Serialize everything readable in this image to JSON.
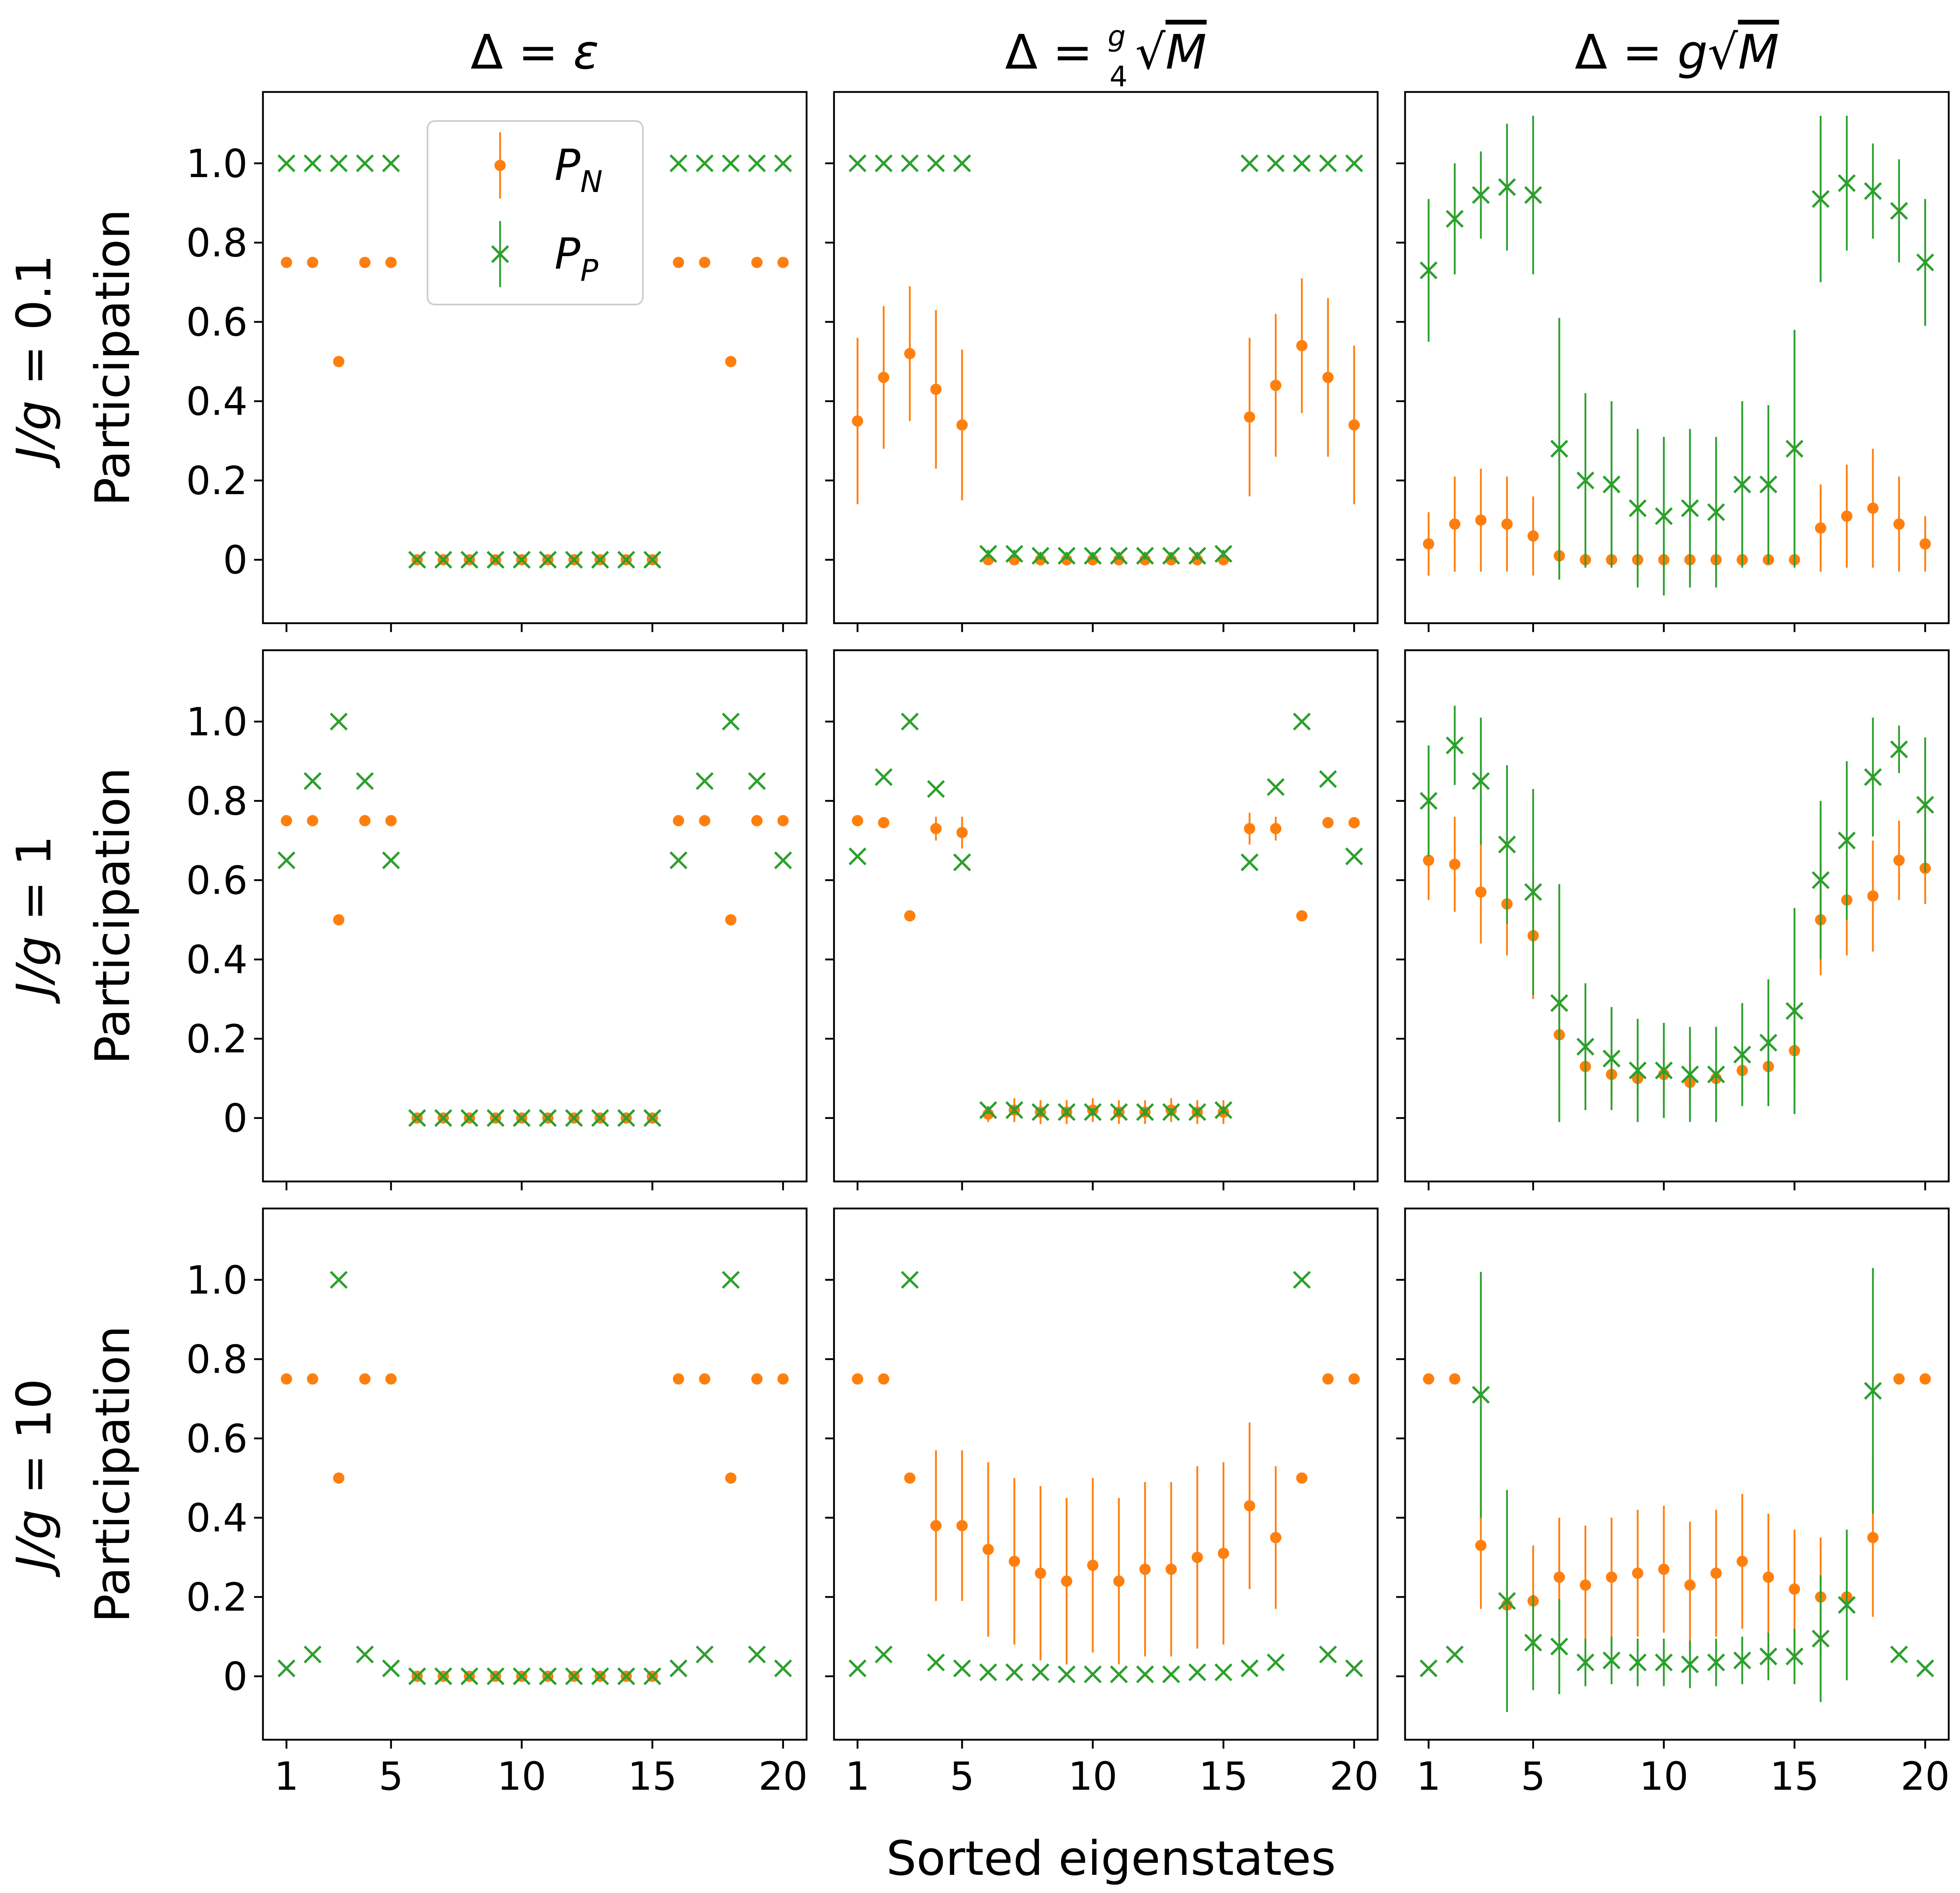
{
  "figure": {
    "xlabel": "Sorted eigenstates",
    "ylabel": "Participation",
    "col_titles": [
      {
        "prefix": "Δ = ",
        "main": "ε"
      },
      {
        "prefix": "Δ = ",
        "frac_num": "g",
        "frac_den": "4",
        "sqrt": "M"
      },
      {
        "prefix": "Δ = ",
        "main": "g",
        "sqrt": "M"
      }
    ],
    "row_labels": [
      {
        "var": "J/g",
        "eq": " = ",
        "value": "0.1"
      },
      {
        "var": "J/g",
        "eq": " = ",
        "value": "1"
      },
      {
        "var": "J/g",
        "eq": " = ",
        "value": "10"
      }
    ],
    "legend": {
      "position": "top-left of first panel",
      "entries": [
        {
          "symbol": "P",
          "sub": "N",
          "color": "#ff7f0e",
          "marker": "dot"
        },
        {
          "symbol": "P",
          "sub": "P",
          "color": "#2ca02c",
          "marker": "x"
        }
      ]
    },
    "colors": {
      "PN": "#ff7f0e",
      "PP": "#2ca02c"
    }
  },
  "chart_data": {
    "type": "scatter",
    "xlabel": "Sorted eigenstates",
    "ylabel": "Participation",
    "x": [
      1,
      2,
      3,
      4,
      5,
      6,
      7,
      8,
      9,
      10,
      11,
      12,
      13,
      14,
      15,
      16,
      17,
      18,
      19,
      20
    ],
    "xticks": [
      1,
      5,
      10,
      15,
      20
    ],
    "xtick_labels": [
      "1",
      "5",
      "10",
      "15",
      "20"
    ],
    "yticks": [
      0,
      0.2,
      0.4,
      0.6,
      0.8,
      1.0
    ],
    "ytick_labels": [
      "0",
      "0.2",
      "0.4",
      "0.6",
      "0.8",
      "1.0"
    ],
    "xlim": [
      0.1,
      20.9
    ],
    "ylim": [
      -0.16,
      1.18
    ],
    "grid": false,
    "panels": [
      {
        "row": 0,
        "col": 0,
        "PN": [
          0.75,
          0.75,
          0.5,
          0.75,
          0.75,
          0,
          0,
          0,
          0,
          0,
          0,
          0,
          0,
          0,
          0,
          0.75,
          0.75,
          0.5,
          0.75,
          0.75
        ],
        "PN_err": [
          0,
          0,
          0,
          0,
          0,
          0,
          0,
          0,
          0,
          0,
          0,
          0,
          0,
          0,
          0,
          0,
          0,
          0,
          0,
          0
        ],
        "PP": [
          1,
          1,
          1,
          1,
          1,
          0,
          0,
          0,
          0,
          0,
          0,
          0,
          0,
          0,
          0,
          1,
          1,
          1,
          1,
          1
        ],
        "PP_err": [
          0,
          0,
          0,
          0,
          0,
          0,
          0,
          0,
          0,
          0,
          0,
          0,
          0,
          0,
          0,
          0,
          0,
          0,
          0,
          0
        ]
      },
      {
        "row": 0,
        "col": 1,
        "PN": [
          0.35,
          0.46,
          0.52,
          0.43,
          0.34,
          0,
          0,
          0,
          0,
          0,
          0,
          0,
          0,
          0,
          0,
          0.36,
          0.44,
          0.54,
          0.46,
          0.34
        ],
        "PN_err": [
          0.21,
          0.18,
          0.17,
          0.2,
          0.19,
          0,
          0,
          0,
          0,
          0,
          0,
          0,
          0,
          0,
          0,
          0.2,
          0.18,
          0.17,
          0.2,
          0.2
        ],
        "PP": [
          1,
          1,
          1,
          1,
          1,
          0.015,
          0.015,
          0.01,
          0.01,
          0.01,
          0.01,
          0.01,
          0.01,
          0.01,
          0.015,
          1,
          1,
          1,
          1,
          1
        ],
        "PP_err": [
          0,
          0,
          0,
          0,
          0,
          0.01,
          0.01,
          0.01,
          0.01,
          0.01,
          0.01,
          0.01,
          0.01,
          0.01,
          0.01,
          0,
          0,
          0,
          0,
          0
        ]
      },
      {
        "row": 0,
        "col": 2,
        "PN": [
          0.04,
          0.09,
          0.1,
          0.09,
          0.06,
          0.01,
          0,
          0,
          0,
          0,
          0,
          0,
          0,
          0,
          0,
          0.08,
          0.11,
          0.13,
          0.09,
          0.04
        ],
        "PN_err": [
          0.08,
          0.12,
          0.13,
          0.12,
          0.1,
          0.03,
          0.01,
          0.01,
          0.01,
          0.01,
          0.01,
          0.01,
          0.01,
          0.01,
          0.01,
          0.11,
          0.13,
          0.15,
          0.12,
          0.07
        ],
        "PP": [
          0.73,
          0.86,
          0.92,
          0.94,
          0.92,
          0.28,
          0.2,
          0.19,
          0.13,
          0.11,
          0.13,
          0.12,
          0.19,
          0.19,
          0.28,
          0.91,
          0.95,
          0.93,
          0.88,
          0.75
        ],
        "PP_err": [
          0.18,
          0.14,
          0.11,
          0.16,
          0.2,
          0.33,
          0.22,
          0.21,
          0.2,
          0.2,
          0.2,
          0.19,
          0.21,
          0.2,
          0.3,
          0.21,
          0.17,
          0.12,
          0.13,
          0.16
        ]
      },
      {
        "row": 1,
        "col": 0,
        "PN": [
          0.75,
          0.75,
          0.5,
          0.75,
          0.75,
          0,
          0,
          0,
          0,
          0,
          0,
          0,
          0,
          0,
          0,
          0.75,
          0.75,
          0.5,
          0.75,
          0.75
        ],
        "PN_err": [
          0,
          0,
          0,
          0,
          0,
          0,
          0,
          0,
          0,
          0,
          0,
          0,
          0,
          0,
          0,
          0,
          0,
          0,
          0,
          0
        ],
        "PP": [
          0.65,
          0.85,
          1,
          0.85,
          0.65,
          0,
          0,
          0,
          0,
          0,
          0,
          0,
          0,
          0,
          0,
          0.65,
          0.85,
          1,
          0.85,
          0.65
        ],
        "PP_err": [
          0,
          0,
          0,
          0,
          0,
          0,
          0,
          0,
          0,
          0,
          0,
          0,
          0,
          0,
          0,
          0,
          0,
          0,
          0,
          0
        ]
      },
      {
        "row": 1,
        "col": 1,
        "PN": [
          0.75,
          0.745,
          0.51,
          0.73,
          0.72,
          0.01,
          0.02,
          0.015,
          0.015,
          0.02,
          0.015,
          0.015,
          0.02,
          0.015,
          0.015,
          0.73,
          0.73,
          0.51,
          0.745,
          0.745
        ],
        "PN_err": [
          0,
          0,
          0,
          0.03,
          0.04,
          0.02,
          0.03,
          0.03,
          0.03,
          0.03,
          0.03,
          0.03,
          0.03,
          0.03,
          0.03,
          0.04,
          0.03,
          0,
          0,
          0
        ],
        "PP": [
          0.66,
          0.86,
          1,
          0.83,
          0.645,
          0.02,
          0.02,
          0.015,
          0.015,
          0.015,
          0.015,
          0.015,
          0.015,
          0.015,
          0.02,
          0.645,
          0.835,
          1,
          0.855,
          0.66
        ],
        "PP_err": [
          0,
          0,
          0,
          0,
          0,
          0.01,
          0.01,
          0.01,
          0.01,
          0.01,
          0.01,
          0.01,
          0.01,
          0.01,
          0.01,
          0,
          0,
          0,
          0,
          0
        ]
      },
      {
        "row": 1,
        "col": 2,
        "PN": [
          0.65,
          0.64,
          0.57,
          0.54,
          0.46,
          0.21,
          0.13,
          0.11,
          0.1,
          0.11,
          0.09,
          0.1,
          0.12,
          0.13,
          0.17,
          0.5,
          0.55,
          0.56,
          0.65,
          0.63
        ],
        "PN_err": [
          0.1,
          0.12,
          0.13,
          0.13,
          0.16,
          0.12,
          0.07,
          0.06,
          0.05,
          0.06,
          0.05,
          0.05,
          0.07,
          0.08,
          0.1,
          0.14,
          0.14,
          0.14,
          0.1,
          0.09
        ],
        "PP": [
          0.8,
          0.94,
          0.85,
          0.69,
          0.57,
          0.29,
          0.18,
          0.15,
          0.12,
          0.12,
          0.11,
          0.11,
          0.16,
          0.19,
          0.27,
          0.6,
          0.7,
          0.86,
          0.93,
          0.79
        ],
        "PP_err": [
          0.14,
          0.1,
          0.16,
          0.2,
          0.26,
          0.3,
          0.16,
          0.13,
          0.13,
          0.12,
          0.12,
          0.12,
          0.13,
          0.16,
          0.26,
          0.2,
          0.2,
          0.15,
          0.06,
          0.17
        ]
      },
      {
        "row": 2,
        "col": 0,
        "PN": [
          0.75,
          0.75,
          0.5,
          0.75,
          0.75,
          0,
          0,
          0,
          0,
          0,
          0,
          0,
          0,
          0,
          0,
          0.75,
          0.75,
          0.5,
          0.75,
          0.75
        ],
        "PN_err": [
          0,
          0,
          0,
          0,
          0,
          0,
          0,
          0,
          0,
          0,
          0,
          0,
          0,
          0,
          0,
          0,
          0,
          0,
          0,
          0
        ],
        "PP": [
          0.02,
          0.055,
          1,
          0.055,
          0.02,
          0,
          0,
          0,
          0,
          0,
          0,
          0,
          0,
          0,
          0,
          0.02,
          0.055,
          1,
          0.055,
          0.02
        ],
        "PP_err": [
          0,
          0,
          0,
          0,
          0,
          0,
          0,
          0,
          0,
          0,
          0,
          0,
          0,
          0,
          0,
          0,
          0,
          0,
          0,
          0
        ]
      },
      {
        "row": 2,
        "col": 1,
        "PN": [
          0.75,
          0.75,
          0.5,
          0.38,
          0.38,
          0.32,
          0.29,
          0.26,
          0.24,
          0.28,
          0.24,
          0.27,
          0.27,
          0.3,
          0.31,
          0.43,
          0.35,
          0.5,
          0.75,
          0.75
        ],
        "PN_err": [
          0,
          0,
          0,
          0.19,
          0.19,
          0.22,
          0.21,
          0.22,
          0.21,
          0.22,
          0.21,
          0.22,
          0.22,
          0.23,
          0.23,
          0.21,
          0.18,
          0,
          0,
          0
        ],
        "PP": [
          0.02,
          0.055,
          1,
          0.035,
          0.02,
          0.01,
          0.01,
          0.01,
          0.005,
          0.005,
          0.005,
          0.005,
          0.005,
          0.01,
          0.01,
          0.02,
          0.035,
          1,
          0.055,
          0.02
        ],
        "PP_err": [
          0,
          0,
          0,
          0,
          0,
          0,
          0,
          0,
          0,
          0,
          0,
          0,
          0,
          0,
          0,
          0,
          0,
          0,
          0,
          0
        ]
      },
      {
        "row": 2,
        "col": 2,
        "PN": [
          0.75,
          0.75,
          0.33,
          0.18,
          0.19,
          0.25,
          0.23,
          0.25,
          0.26,
          0.27,
          0.23,
          0.26,
          0.29,
          0.25,
          0.22,
          0.2,
          0.2,
          0.35,
          0.75,
          0.75
        ],
        "PN_err": [
          0,
          0,
          0.16,
          0.14,
          0.14,
          0.15,
          0.15,
          0.15,
          0.16,
          0.16,
          0.16,
          0.16,
          0.17,
          0.16,
          0.15,
          0.15,
          0.14,
          0.2,
          0,
          0
        ],
        "PP": [
          0.02,
          0.055,
          0.71,
          0.19,
          0.085,
          0.075,
          0.035,
          0.04,
          0.035,
          0.035,
          0.03,
          0.035,
          0.04,
          0.05,
          0.05,
          0.095,
          0.18,
          0.72,
          0.055,
          0.02
        ],
        "PP_err": [
          0,
          0,
          0.31,
          0.28,
          0.12,
          0.12,
          0.06,
          0.06,
          0.06,
          0.06,
          0.06,
          0.06,
          0.06,
          0.06,
          0.07,
          0.16,
          0.19,
          0.31,
          0,
          0
        ]
      }
    ]
  }
}
